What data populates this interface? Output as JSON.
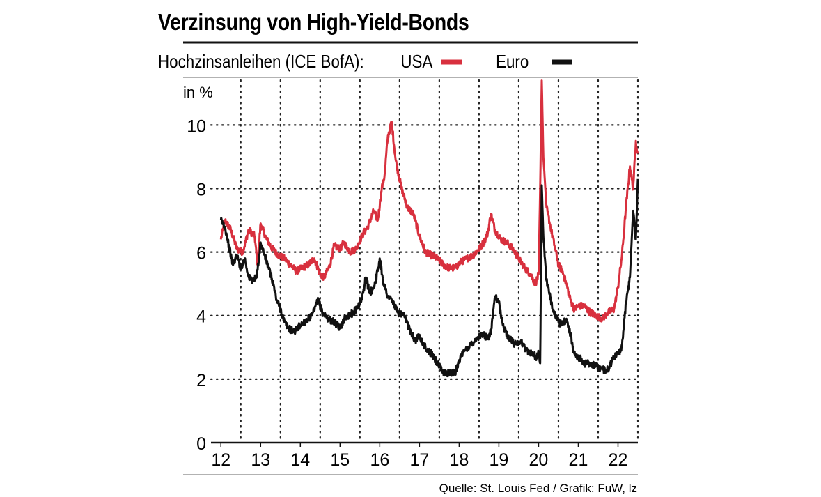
{
  "title": "Verzinsung von High-Yield-Bonds",
  "subtitle": "Hochzinsanleihen (ICE BofA):",
  "source": "Quelle: St. Louis Fed / Grafik: FuW, lz",
  "colors": {
    "usa": "#d8303e",
    "euro": "#111111",
    "grid": "#222222"
  },
  "chart_data": {
    "type": "line",
    "title": "Verzinsung von High-Yield-Bonds",
    "ylabel": "in %",
    "xlabel": "",
    "ylim": [
      0,
      11.5
    ],
    "xlim": [
      2011.75,
      2022.5
    ],
    "yticks": [
      0,
      2,
      4,
      6,
      8,
      10
    ],
    "yticklabels": [
      "0",
      "2",
      "4",
      "6",
      "8",
      "10"
    ],
    "xticklabels": [
      "12",
      "13",
      "14",
      "15",
      "16",
      "17",
      "18",
      "19",
      "20",
      "21",
      "22"
    ],
    "xtick_positions": [
      2012,
      2013,
      2014,
      2015,
      2016,
      2017,
      2018,
      2019,
      2020,
      2021,
      2022
    ],
    "grid": "dotted",
    "legend_position": "top-right",
    "series": [
      {
        "name": "USA",
        "color": "#d8303e",
        "x": [
          2012.0,
          2012.1,
          2012.25,
          2012.4,
          2012.55,
          2012.7,
          2012.85,
          2012.92,
          2013.0,
          2013.15,
          2013.3,
          2013.45,
          2013.6,
          2013.75,
          2013.9,
          2014.05,
          2014.2,
          2014.35,
          2014.5,
          2014.6,
          2014.75,
          2014.85,
          2015.0,
          2015.1,
          2015.25,
          2015.4,
          2015.55,
          2015.7,
          2015.85,
          2015.95,
          2016.05,
          2016.12,
          2016.2,
          2016.3,
          2016.4,
          2016.55,
          2016.7,
          2016.85,
          2017.0,
          2017.15,
          2017.3,
          2017.45,
          2017.6,
          2017.75,
          2017.9,
          2018.05,
          2018.2,
          2018.35,
          2018.5,
          2018.62,
          2018.72,
          2018.8,
          2018.9,
          2019.05,
          2019.2,
          2019.35,
          2019.5,
          2019.65,
          2019.8,
          2019.92,
          2020.0,
          2020.04,
          2020.08,
          2020.12,
          2020.2,
          2020.3,
          2020.4,
          2020.5,
          2020.6,
          2020.7,
          2020.8,
          2020.9,
          2021.0,
          2021.15,
          2021.3,
          2021.45,
          2021.6,
          2021.75,
          2021.9,
          2022.0,
          2022.1,
          2022.2,
          2022.3,
          2022.38,
          2022.45,
          2022.5
        ],
        "values": [
          6.4,
          7.0,
          6.7,
          6.1,
          6.0,
          6.7,
          6.5,
          5.6,
          6.9,
          6.4,
          6.1,
          5.9,
          5.8,
          5.6,
          5.4,
          5.5,
          5.6,
          5.8,
          5.3,
          5.2,
          5.6,
          6.2,
          6.1,
          6.3,
          6.0,
          6.1,
          6.5,
          6.8,
          7.3,
          7.0,
          8.0,
          8.4,
          9.6,
          10.1,
          8.9,
          8.0,
          7.4,
          7.2,
          6.5,
          6.0,
          5.9,
          5.8,
          5.6,
          5.5,
          5.5,
          5.7,
          5.8,
          5.9,
          6.1,
          6.3,
          6.6,
          7.2,
          6.7,
          6.4,
          6.3,
          6.1,
          5.8,
          5.5,
          5.3,
          5.0,
          5.3,
          8.0,
          11.4,
          9.0,
          7.4,
          6.8,
          6.2,
          5.6,
          5.4,
          5.0,
          4.5,
          4.2,
          4.3,
          4.3,
          4.1,
          4.0,
          3.9,
          4.1,
          4.2,
          4.9,
          5.9,
          7.4,
          8.7,
          8.0,
          9.5,
          9.1
        ]
      },
      {
        "name": "Euro",
        "color": "#111111",
        "x": [
          2012.0,
          2012.1,
          2012.2,
          2012.3,
          2012.4,
          2012.5,
          2012.6,
          2012.7,
          2012.8,
          2012.9,
          2013.0,
          2013.1,
          2013.2,
          2013.3,
          2013.4,
          2013.5,
          2013.6,
          2013.7,
          2013.85,
          2014.0,
          2014.1,
          2014.2,
          2014.3,
          2014.45,
          2014.55,
          2014.7,
          2014.85,
          2015.0,
          2015.1,
          2015.2,
          2015.35,
          2015.45,
          2015.55,
          2015.65,
          2015.75,
          2015.85,
          2015.95,
          2016.0,
          2016.1,
          2016.2,
          2016.3,
          2016.45,
          2016.6,
          2016.75,
          2016.9,
          2017.0,
          2017.1,
          2017.2,
          2017.3,
          2017.4,
          2017.5,
          2017.6,
          2017.75,
          2017.9,
          2018.0,
          2018.15,
          2018.3,
          2018.45,
          2018.6,
          2018.72,
          2018.8,
          2018.9,
          2019.0,
          2019.1,
          2019.25,
          2019.4,
          2019.55,
          2019.7,
          2019.85,
          2019.95,
          2020.0,
          2020.04,
          2020.08,
          2020.12,
          2020.2,
          2020.3,
          2020.4,
          2020.5,
          2020.6,
          2020.7,
          2020.8,
          2020.9,
          2021.0,
          2021.15,
          2021.3,
          2021.45,
          2021.6,
          2021.75,
          2021.9,
          2022.0,
          2022.1,
          2022.2,
          2022.3,
          2022.38,
          2022.45,
          2022.5
        ],
        "values": [
          7.0,
          6.8,
          6.2,
          5.6,
          5.9,
          5.5,
          5.8,
          5.2,
          5.1,
          5.2,
          6.3,
          5.9,
          5.5,
          5.1,
          4.5,
          4.2,
          3.8,
          3.6,
          3.5,
          3.7,
          3.8,
          3.9,
          4.0,
          4.5,
          4.1,
          3.9,
          3.8,
          3.6,
          3.9,
          4.0,
          4.1,
          4.3,
          4.5,
          5.2,
          4.7,
          4.9,
          5.4,
          5.8,
          5.0,
          4.6,
          4.5,
          4.1,
          4.0,
          3.6,
          3.2,
          3.4,
          3.1,
          2.9,
          2.8,
          2.6,
          2.4,
          2.2,
          2.2,
          2.2,
          2.6,
          2.9,
          3.1,
          3.3,
          3.4,
          3.3,
          3.5,
          4.6,
          4.4,
          3.7,
          3.3,
          3.1,
          3.2,
          2.9,
          2.8,
          2.7,
          2.8,
          2.5,
          8.1,
          6.5,
          5.1,
          4.5,
          4.1,
          3.8,
          3.7,
          3.9,
          3.4,
          2.8,
          2.7,
          2.5,
          2.5,
          2.4,
          2.3,
          2.3,
          2.7,
          2.8,
          3.0,
          4.4,
          5.2,
          7.3,
          6.4,
          8.3
        ]
      }
    ]
  }
}
